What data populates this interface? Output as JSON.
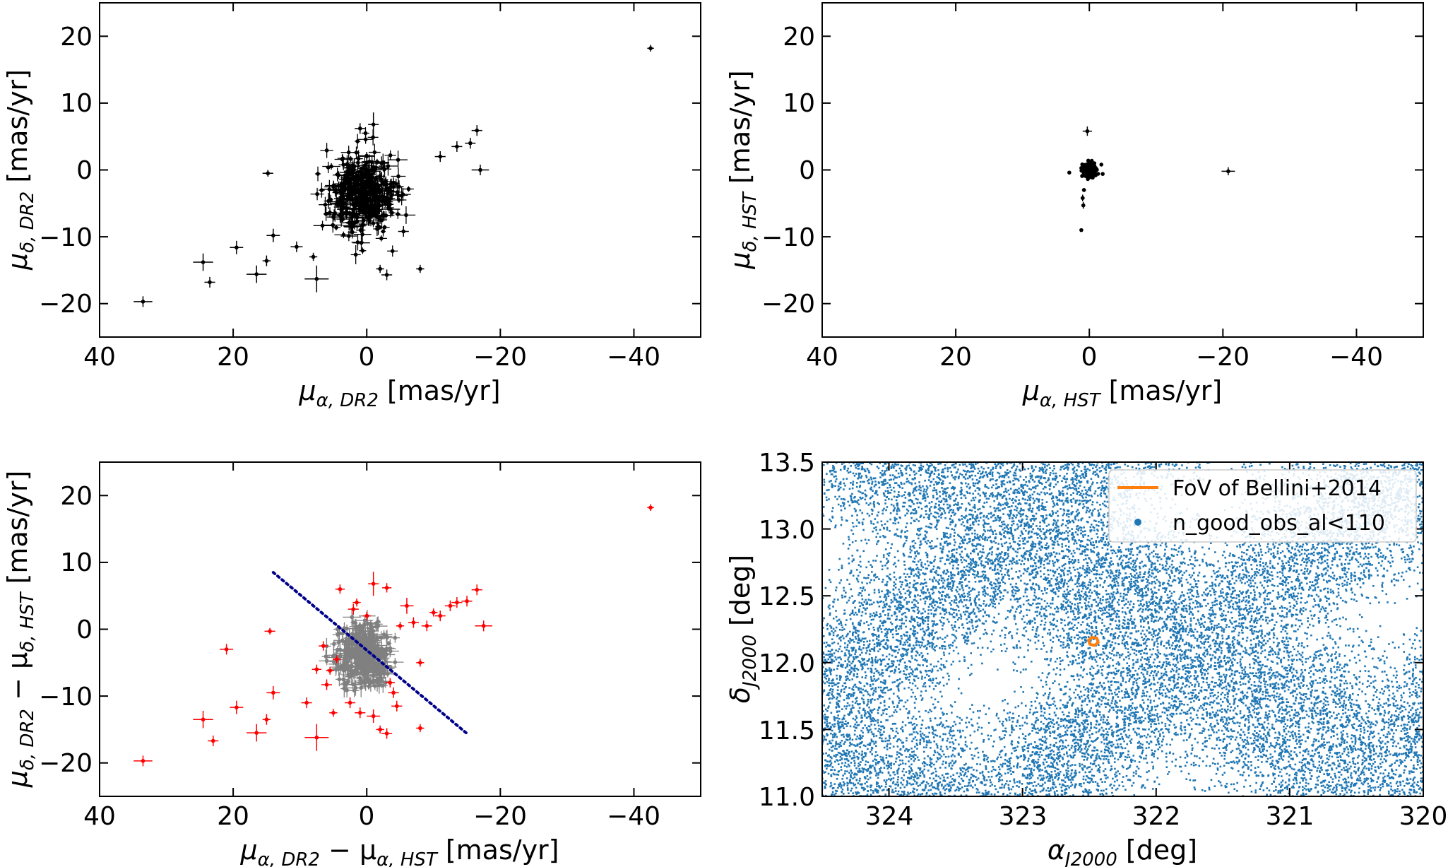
{
  "chart_data": [
    {
      "id": "dr2",
      "type": "scatter",
      "style": "errorbar",
      "xlabel": {
        "sym": "μ",
        "sub": "α, DR2",
        "unit": " [mas/yr]"
      },
      "ylabel": {
        "sym": "μ",
        "sub": "δ, DR2",
        "unit": " [mas/yr]"
      },
      "xlim": [
        40,
        -50
      ],
      "ylim": [
        -25,
        25
      ],
      "xticks": [
        40,
        20,
        0,
        -20,
        -40
      ],
      "yticks": [
        -20,
        -10,
        0,
        10,
        20
      ],
      "xtick_labels": [
        "40",
        "20",
        "0",
        "−20",
        "−40"
      ],
      "ytick_labels": [
        "−20",
        "−10",
        "0",
        "10",
        "20"
      ],
      "color": "#000000",
      "cluster": {
        "center": [
          0.5,
          -3.5
        ],
        "spread": [
          2.5,
          3.0
        ],
        "count": 420,
        "err": [
          0.9,
          0.9
        ]
      },
      "outliers": [
        {
          "x": 33.5,
          "y": -19.7,
          "xe": 1.4,
          "ye": 0.8
        },
        {
          "x": 24.5,
          "y": -13.8,
          "xe": 1.5,
          "ye": 1.3
        },
        {
          "x": 23.5,
          "y": -16.8,
          "xe": 0.8,
          "ye": 0.8
        },
        {
          "x": 19.5,
          "y": -11.6,
          "xe": 1.0,
          "ye": 1.0
        },
        {
          "x": 16.5,
          "y": -15.6,
          "xe": 1.5,
          "ye": 1.3
        },
        {
          "x": 15.0,
          "y": -13.6,
          "xe": 0.6,
          "ye": 0.8
        },
        {
          "x": 14.8,
          "y": -0.5,
          "xe": 0.8,
          "ye": 0.5
        },
        {
          "x": 14.0,
          "y": -9.8,
          "xe": 1.0,
          "ye": 1.0
        },
        {
          "x": 7.5,
          "y": -16.3,
          "xe": 1.8,
          "ye": 2.0
        },
        {
          "x": 10.5,
          "y": -11.5,
          "xe": 0.9,
          "ye": 0.8
        },
        {
          "x": 8.0,
          "y": -13.0,
          "xe": 0.6,
          "ye": 0.6
        },
        {
          "x": -2.0,
          "y": -14.8,
          "xe": 0.6,
          "ye": 0.6
        },
        {
          "x": -3.0,
          "y": -15.7,
          "xe": 0.8,
          "ye": 0.8
        },
        {
          "x": -8.0,
          "y": -14.8,
          "xe": 0.6,
          "ye": 0.6
        },
        {
          "x": -5.5,
          "y": -9.2,
          "xe": 0.8,
          "ye": 0.8
        },
        {
          "x": -13.5,
          "y": 3.5,
          "xe": 0.8,
          "ye": 0.8
        },
        {
          "x": -15.5,
          "y": 4.0,
          "xe": 0.8,
          "ye": 0.8
        },
        {
          "x": -16.5,
          "y": 5.9,
          "xe": 0.8,
          "ye": 0.8
        },
        {
          "x": -17.0,
          "y": 0.0,
          "xe": 1.3,
          "ye": 0.8
        },
        {
          "x": -11.0,
          "y": 2.0,
          "xe": 0.8,
          "ye": 0.8
        },
        {
          "x": 1.0,
          "y": 6.2,
          "xe": 0.8,
          "ye": 0.8
        },
        {
          "x": -1.0,
          "y": 6.8,
          "xe": 0.8,
          "ye": 1.8
        },
        {
          "x": -42.5,
          "y": 18.2,
          "xe": 0.5,
          "ye": 0.5
        }
      ]
    },
    {
      "id": "hst",
      "type": "scatter",
      "style": "errorbar",
      "xlabel": {
        "sym": "μ",
        "sub": "α, HST",
        "unit": " [mas/yr]"
      },
      "ylabel": {
        "sym": "μ",
        "sub": "δ, HST",
        "unit": " [mas/yr]"
      },
      "xlim": [
        40,
        -50
      ],
      "ylim": [
        -25,
        25
      ],
      "xticks": [
        40,
        20,
        0,
        -20,
        -40
      ],
      "yticks": [
        -20,
        -10,
        0,
        10,
        20
      ],
      "xtick_labels": [
        "40",
        "20",
        "0",
        "−20",
        "−40"
      ],
      "ytick_labels": [
        "−20",
        "−10",
        "0",
        "10",
        "20"
      ],
      "color": "#000000",
      "cluster": {
        "center": [
          0.0,
          0.0
        ],
        "spread": [
          0.45,
          0.45
        ],
        "count": 260,
        "err": [
          0.1,
          0.1
        ]
      },
      "outliers": [
        {
          "x": 0.3,
          "y": 5.8,
          "xe": 0.7,
          "ye": 0.7
        },
        {
          "x": -20.8,
          "y": -0.2,
          "xe": 1.0,
          "ye": 0.6
        },
        {
          "x": 1.2,
          "y": -9.0,
          "xe": 0.2,
          "ye": 0.2
        },
        {
          "x": 0.9,
          "y": -5.3,
          "xe": 0.3,
          "ye": 0.5
        },
        {
          "x": 1.0,
          "y": -4.2,
          "xe": 0.3,
          "ye": 0.5
        },
        {
          "x": 0.8,
          "y": -3.0,
          "xe": 0.3,
          "ye": 0.3
        },
        {
          "x": 3.0,
          "y": -0.4,
          "xe": 0.2,
          "ye": 0.2
        },
        {
          "x": -1.8,
          "y": 0.8,
          "xe": 0.2,
          "ye": 0.2
        },
        {
          "x": -2.0,
          "y": -0.6,
          "xe": 0.2,
          "ye": 0.2
        }
      ]
    },
    {
      "id": "diff",
      "type": "scatter",
      "style": "errorbar",
      "xlabel": {
        "sym": "μ",
        "sub": "α, DR2",
        "mid": " − μ",
        "sub2": "α, HST",
        "unit": " [mas/yr]"
      },
      "ylabel": {
        "sym": "μ",
        "sub": "δ, DR2",
        "mid": " − μ",
        "sub2": "δ, HST",
        "unit": " [mas/yr]"
      },
      "xlim": [
        40,
        -50
      ],
      "ylim": [
        -25,
        25
      ],
      "xticks": [
        40,
        20,
        0,
        -20,
        -40
      ],
      "yticks": [
        -20,
        -10,
        0,
        10,
        20
      ],
      "xtick_labels": [
        "40",
        "20",
        "0",
        "−20",
        "−40"
      ],
      "ytick_labels": [
        "−20",
        "−10",
        "0",
        "10",
        "20"
      ],
      "color": "#ff0000",
      "cluster_color": "#808080",
      "cluster": {
        "center": [
          0.5,
          -4.0
        ],
        "spread": [
          2.0,
          2.3
        ],
        "count": 380,
        "err": [
          0.9,
          0.9
        ]
      },
      "dotted_line": {
        "from": [
          14,
          8.5
        ],
        "to": [
          -15,
          -15.6
        ],
        "color": "#00008b"
      },
      "outliers": [
        {
          "x": 33.5,
          "y": -19.7,
          "xe": 1.4,
          "ye": 0.8
        },
        {
          "x": 24.5,
          "y": -13.5,
          "xe": 1.5,
          "ye": 1.3
        },
        {
          "x": 23.0,
          "y": -16.7,
          "xe": 0.8,
          "ye": 0.8
        },
        {
          "x": 21.0,
          "y": -3.0,
          "xe": 1.0,
          "ye": 0.8
        },
        {
          "x": 19.5,
          "y": -11.7,
          "xe": 1.0,
          "ye": 1.0
        },
        {
          "x": 16.5,
          "y": -15.5,
          "xe": 1.5,
          "ye": 1.3
        },
        {
          "x": 15.0,
          "y": -13.5,
          "xe": 0.6,
          "ye": 0.8
        },
        {
          "x": 14.5,
          "y": -0.3,
          "xe": 0.8,
          "ye": 0.5
        },
        {
          "x": 14.0,
          "y": -9.5,
          "xe": 1.0,
          "ye": 1.0
        },
        {
          "x": 7.5,
          "y": -16.2,
          "xe": 1.8,
          "ye": 2.0
        },
        {
          "x": 9.0,
          "y": -11.0,
          "xe": 0.8,
          "ye": 0.8
        },
        {
          "x": 6.0,
          "y": -8.3,
          "xe": 0.8,
          "ye": 0.8
        },
        {
          "x": 5.0,
          "y": -12.5,
          "xe": 0.6,
          "ye": 0.6
        },
        {
          "x": 4.5,
          "y": -4.5,
          "xe": 0.6,
          "ye": 0.6
        },
        {
          "x": 5.5,
          "y": -6.2,
          "xe": 0.6,
          "ye": 0.6
        },
        {
          "x": 4.0,
          "y": 6.0,
          "xe": 0.7,
          "ye": 0.7
        },
        {
          "x": 2.0,
          "y": 3.0,
          "xe": 0.8,
          "ye": 0.8
        },
        {
          "x": 1.5,
          "y": 4.0,
          "xe": 0.6,
          "ye": 0.6
        },
        {
          "x": 0.0,
          "y": 2.0,
          "xe": 0.6,
          "ye": 0.6
        },
        {
          "x": -1.0,
          "y": 6.8,
          "xe": 0.8,
          "ye": 1.8
        },
        {
          "x": -3.0,
          "y": 6.2,
          "xe": 0.7,
          "ye": 0.7
        },
        {
          "x": 2.5,
          "y": -11.0,
          "xe": 0.8,
          "ye": 0.8
        },
        {
          "x": 1.0,
          "y": -12.5,
          "xe": 0.8,
          "ye": 0.8
        },
        {
          "x": -1.0,
          "y": -13.0,
          "xe": 1.0,
          "ye": 1.0
        },
        {
          "x": -2.0,
          "y": -15.0,
          "xe": 0.6,
          "ye": 0.6
        },
        {
          "x": -3.0,
          "y": -15.6,
          "xe": 0.8,
          "ye": 0.8
        },
        {
          "x": -4.5,
          "y": -11.5,
          "xe": 0.8,
          "ye": 0.8
        },
        {
          "x": -4.0,
          "y": -9.5,
          "xe": 0.8,
          "ye": 0.8
        },
        {
          "x": -8.0,
          "y": -14.8,
          "xe": 0.6,
          "ye": 0.6
        },
        {
          "x": -6.0,
          "y": 3.5,
          "xe": 1.0,
          "ye": 1.2
        },
        {
          "x": -7.0,
          "y": 1.0,
          "xe": 0.8,
          "ye": 0.8
        },
        {
          "x": -5.0,
          "y": 0.5,
          "xe": 0.6,
          "ye": 0.6
        },
        {
          "x": -9.0,
          "y": 0.5,
          "xe": 0.8,
          "ye": 0.8
        },
        {
          "x": -11.0,
          "y": 2.0,
          "xe": 0.8,
          "ye": 0.8
        },
        {
          "x": -12.5,
          "y": 3.5,
          "xe": 0.8,
          "ye": 0.8
        },
        {
          "x": -13.5,
          "y": 4.0,
          "xe": 0.8,
          "ye": 0.8
        },
        {
          "x": -15.0,
          "y": 4.2,
          "xe": 0.8,
          "ye": 0.8
        },
        {
          "x": -16.5,
          "y": 5.9,
          "xe": 0.8,
          "ye": 0.8
        },
        {
          "x": -17.5,
          "y": 0.5,
          "xe": 1.3,
          "ye": 0.8
        },
        {
          "x": -10.0,
          "y": 2.5,
          "xe": 0.6,
          "ye": 0.6
        },
        {
          "x": -8.0,
          "y": -5.0,
          "xe": 0.6,
          "ye": 0.6
        },
        {
          "x": -3.5,
          "y": -8.0,
          "xe": 0.7,
          "ye": 0.7
        },
        {
          "x": 7.5,
          "y": -6.0,
          "xe": 0.7,
          "ye": 0.7
        },
        {
          "x": 6.5,
          "y": -2.5,
          "xe": 0.7,
          "ye": 0.7
        },
        {
          "x": -42.5,
          "y": 18.2,
          "xe": 0.5,
          "ye": 0.5
        }
      ]
    },
    {
      "id": "sky",
      "type": "scatter",
      "style": "density",
      "xlabel": {
        "sym": "α",
        "sub": "J2000",
        "unit": " [deg]"
      },
      "ylabel": {
        "sym": "δ",
        "sub": "J2000",
        "unit": " [deg]"
      },
      "xlim": [
        324.5,
        320
      ],
      "ylim": [
        11.0,
        13.5
      ],
      "xticks": [
        324,
        323,
        322,
        321,
        320
      ],
      "yticks": [
        11.0,
        11.5,
        12.0,
        12.5,
        13.0,
        13.5
      ],
      "xtick_labels": [
        "324",
        "323",
        "322",
        "321",
        "320"
      ],
      "ytick_labels": [
        "11.0",
        "11.5",
        "12.0",
        "12.5",
        "13.0",
        "13.5"
      ],
      "color": "#1f77b4",
      "fov_color": "#ff7f0e",
      "fov_center": [
        322.47,
        12.16
      ],
      "legend": {
        "position": "top-right",
        "entries": [
          "FoV of Bellini+2014",
          "n_good_obs_al<110"
        ]
      }
    }
  ]
}
